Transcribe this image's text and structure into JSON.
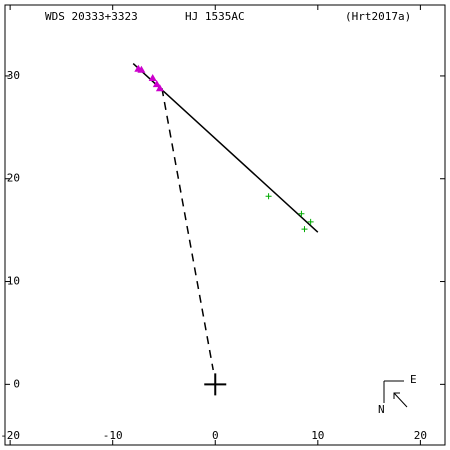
{
  "chart_data": {
    "type": "scatter",
    "labels": [
      "WDS 20333+3323",
      "HJ 1535AC",
      "(Hrt2017a)"
    ],
    "xlim": [
      -20.5,
      22.4
    ],
    "ylim": [
      -5.9,
      36.9
    ],
    "xticks": [
      -20,
      -10,
      0,
      10,
      20
    ],
    "yticks": [
      0,
      10,
      20,
      30
    ],
    "series": [
      {
        "color": "#000000",
        "line": "solid",
        "x": [
          -8.0,
          10.0
        ],
        "values": [
          31.2,
          14.8
        ]
      },
      {
        "color": "#000000",
        "line": "dashed",
        "x": [
          -5.2,
          -0.2
        ],
        "values": [
          28.8,
          1.4
        ]
      },
      {
        "color": "#cc00cc",
        "marker": "triangle",
        "x": [
          -7.5,
          -7.2,
          -6.1,
          -5.7,
          -5.4
        ],
        "values": [
          30.7,
          30.6,
          29.8,
          29.2,
          28.8
        ]
      },
      {
        "color": "#00aa00",
        "marker": "plus",
        "x": [
          5.2,
          8.4,
          9.3,
          8.7
        ],
        "values": [
          18.3,
          16.6,
          15.8,
          15.1
        ]
      },
      {
        "color": "#000000",
        "marker": "bigplus",
        "x": [
          0
        ],
        "values": [
          0
        ]
      }
    ],
    "compass": {
      "east": "E",
      "north": "N"
    }
  }
}
